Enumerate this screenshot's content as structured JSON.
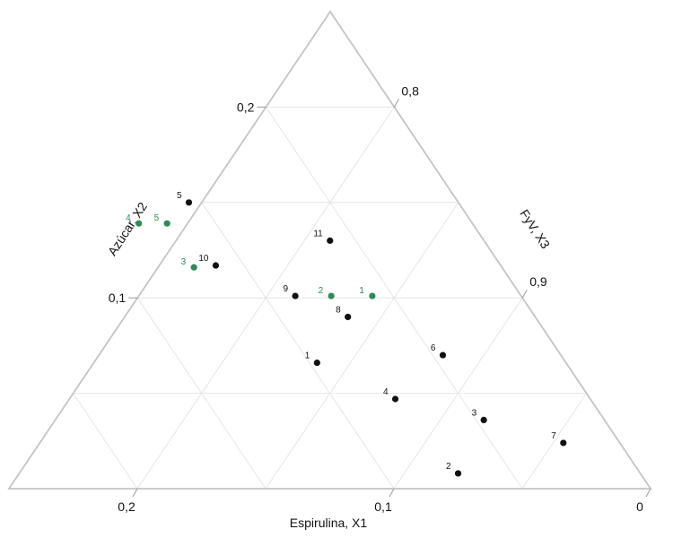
{
  "chart_data": {
    "type": "scatter",
    "subtype": "ternary",
    "axes": {
      "x1": {
        "label": "Espirulina, X1",
        "ticks": [
          "0,2",
          "0,1",
          "0"
        ]
      },
      "x2": {
        "label": "Azúcar, X2",
        "ticks": [
          "0,2",
          "0,1"
        ]
      },
      "x3": {
        "label": "FyV, X3",
        "ticks": [
          "0,8",
          "0,9"
        ]
      }
    },
    "series": [
      {
        "color": "#111111",
        "points": [
          {
            "label": "1",
            "x1": 0.097,
            "x2": 0.066
          },
          {
            "label": "2",
            "x1": 0.071,
            "x2": 0.008
          },
          {
            "label": "3",
            "x1": 0.047,
            "x2": 0.036
          },
          {
            "label": "4",
            "x1": 0.076,
            "x2": 0.047
          },
          {
            "label": "5",
            "x1": 0.105,
            "x2": 0.15
          },
          {
            "label": "6",
            "x1": 0.046,
            "x2": 0.07
          },
          {
            "label": "7",
            "x1": 0.022,
            "x2": 0.024
          },
          {
            "label": "8",
            "x1": 0.073,
            "x2": 0.09
          },
          {
            "label": "9",
            "x1": 0.088,
            "x2": 0.101
          },
          {
            "label": "10",
            "x1": 0.111,
            "x2": 0.117
          },
          {
            "label": "11",
            "x1": 0.06,
            "x2": 0.13
          }
        ]
      },
      {
        "color": "#2e8b57",
        "points": [
          {
            "label": "1",
            "x1": 0.058,
            "x2": 0.101
          },
          {
            "label": "2",
            "x1": 0.074,
            "x2": 0.101
          },
          {
            "label": "3",
            "x1": 0.12,
            "x2": 0.116
          },
          {
            "label": "4",
            "x1": 0.13,
            "x2": 0.139
          },
          {
            "label": "5",
            "x1": 0.119,
            "x2": 0.139
          }
        ]
      }
    ]
  }
}
